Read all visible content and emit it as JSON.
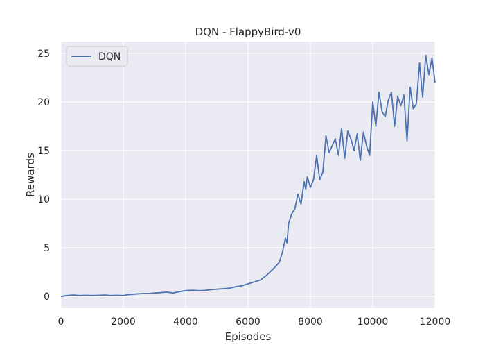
{
  "chart_data": {
    "type": "line",
    "title": "DQN - FlappyBird-v0",
    "xlabel": "Episodes",
    "ylabel": "Rewards",
    "xlim": [
      0,
      12000
    ],
    "ylim": [
      -1.2,
      26.2
    ],
    "xticks": [
      0,
      2000,
      4000,
      6000,
      8000,
      10000,
      12000
    ],
    "yticks": [
      0,
      5,
      10,
      15,
      20,
      25
    ],
    "grid": true,
    "legend": {
      "position": "top-left",
      "entries": [
        "DQN"
      ]
    },
    "series": [
      {
        "name": "DQN",
        "color": "#4c72b0",
        "x": [
          0,
          200,
          400,
          600,
          800,
          1000,
          1200,
          1400,
          1600,
          1800,
          2000,
          2200,
          2400,
          2600,
          2800,
          3000,
          3200,
          3400,
          3600,
          3800,
          4000,
          4200,
          4400,
          4600,
          4800,
          5000,
          5200,
          5400,
          5600,
          5800,
          6000,
          6200,
          6400,
          6600,
          6800,
          7000,
          7100,
          7200,
          7250,
          7300,
          7400,
          7500,
          7600,
          7700,
          7800,
          7850,
          7900,
          8000,
          8100,
          8200,
          8300,
          8400,
          8500,
          8600,
          8700,
          8800,
          8900,
          9000,
          9100,
          9200,
          9300,
          9400,
          9500,
          9600,
          9700,
          9800,
          9900,
          10000,
          10100,
          10200,
          10300,
          10400,
          10500,
          10600,
          10700,
          10800,
          10900,
          11000,
          11100,
          11200,
          11300,
          11400,
          11500,
          11600,
          11700,
          11800,
          11900,
          12000
        ],
        "values": [
          0.0,
          0.1,
          0.15,
          0.1,
          0.12,
          0.1,
          0.12,
          0.15,
          0.1,
          0.12,
          0.1,
          0.2,
          0.25,
          0.3,
          0.3,
          0.35,
          0.4,
          0.45,
          0.35,
          0.5,
          0.6,
          0.65,
          0.6,
          0.62,
          0.7,
          0.75,
          0.8,
          0.85,
          1.0,
          1.1,
          1.3,
          1.5,
          1.7,
          2.2,
          2.8,
          3.5,
          4.5,
          6.0,
          5.5,
          7.5,
          8.5,
          9.0,
          10.5,
          9.5,
          11.8,
          11.0,
          12.3,
          11.2,
          12.0,
          14.5,
          12.0,
          12.8,
          16.5,
          14.8,
          15.5,
          16.2,
          14.5,
          17.3,
          14.2,
          17.0,
          16.2,
          15.0,
          16.7,
          14.0,
          16.9,
          15.5,
          14.5,
          20.0,
          17.5,
          21.0,
          19.0,
          18.5,
          20.2,
          21.0,
          17.5,
          20.6,
          19.6,
          20.7,
          16.0,
          21.5,
          19.3,
          19.8,
          24.0,
          20.5,
          24.8,
          22.8,
          24.5,
          22.0
        ]
      }
    ]
  }
}
